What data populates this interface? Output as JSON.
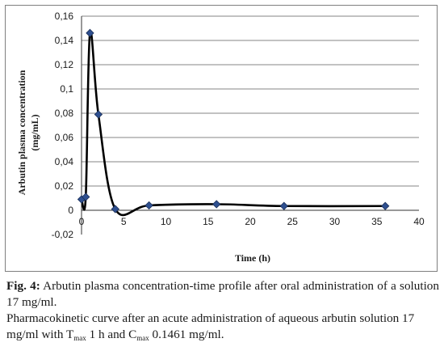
{
  "chart_data": {
    "type": "line",
    "style": "smoothed line with diamond markers",
    "x": [
      0,
      0.5,
      1,
      2,
      4,
      8,
      16,
      24,
      36
    ],
    "series": [
      {
        "values": [
          0.009,
          0.011,
          0.1461,
          0.079,
          0.001,
          0.004,
          0.005,
          0.0035,
          0.0035
        ]
      }
    ],
    "xlabel": "Time (h)",
    "ylabel_line1": "Arbutin plasma concentration",
    "ylabel_line2": "(mg/mL)",
    "xlim": [
      0,
      40
    ],
    "ylim": [
      -0.02,
      0.16
    ],
    "x_ticks": [
      "0",
      "5",
      "10",
      "15",
      "20",
      "25",
      "30",
      "35",
      "40"
    ],
    "y_ticks": [
      "-0,02",
      "0",
      "0,02",
      "0,04",
      "0,06",
      "0,08",
      "0,1",
      "0,12",
      "0,14",
      "0,16"
    ],
    "grid": "horizontal",
    "legend": "none",
    "colors": {
      "line": "#000000",
      "marker": "#2e4f8f",
      "grid": "#868686"
    }
  },
  "caption": {
    "fig_label": "Fig. 4:",
    "fig_title": "Arbutin plasma concentration-time profile after oral administration of a solution 17 mg/ml.",
    "description_prefix": "Pharmacokinetic curve after an acute administration of aqueous arbutin solution 17 mg/ml with T",
    "tmax_sub": "max",
    "tmax_value": "1 h and C",
    "cmax_sub": "max",
    "cmax_value": "0.1461 mg/ml."
  }
}
